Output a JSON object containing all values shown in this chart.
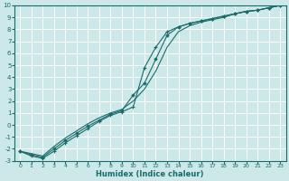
{
  "xlabel": "Humidex (Indice chaleur)",
  "ylabel": "",
  "bg_color": "#cce8e8",
  "grid_color": "#ffffff",
  "line_color": "#1a6b6b",
  "xlim": [
    -0.5,
    23.5
  ],
  "ylim": [
    -3,
    10
  ],
  "xticks": [
    0,
    1,
    2,
    3,
    4,
    5,
    6,
    7,
    8,
    9,
    10,
    11,
    12,
    13,
    14,
    15,
    16,
    17,
    18,
    19,
    20,
    21,
    22,
    23
  ],
  "yticks": [
    -3,
    -2,
    -1,
    0,
    1,
    2,
    3,
    4,
    5,
    6,
    7,
    8,
    9,
    10
  ],
  "series": [
    {
      "x": [
        0,
        1,
        2,
        3,
        4,
        5,
        6,
        7,
        8,
        9,
        10,
        11,
        12,
        13,
        14,
        15,
        16,
        17,
        18,
        19,
        20,
        21,
        22,
        23
      ],
      "y": [
        -2.2,
        -2.6,
        -2.8,
        -2.2,
        -1.5,
        -0.9,
        -0.3,
        0.3,
        0.8,
        1.1,
        1.5,
        4.8,
        6.5,
        7.8,
        8.2,
        8.5,
        8.7,
        8.9,
        9.1,
        9.3,
        9.5,
        9.6,
        9.8,
        10.0
      ],
      "marker": "+"
    },
    {
      "x": [
        0,
        1,
        2,
        3,
        4,
        5,
        6,
        7,
        8,
        9,
        10,
        11,
        12,
        13,
        14,
        15,
        16,
        17,
        18,
        19,
        20,
        21,
        22,
        23
      ],
      "y": [
        -2.2,
        -2.5,
        -2.7,
        -2.0,
        -1.3,
        -0.7,
        -0.1,
        0.4,
        0.9,
        1.2,
        2.5,
        3.5,
        5.5,
        7.5,
        8.2,
        8.5,
        8.7,
        8.9,
        9.1,
        9.3,
        9.5,
        9.6,
        9.8,
        10.0
      ],
      "marker": "D"
    },
    {
      "x": [
        0,
        1,
        2,
        3,
        4,
        5,
        6,
        7,
        8,
        9,
        10,
        11,
        12,
        13,
        14,
        15,
        16,
        17,
        18,
        19,
        20,
        21,
        22,
        23
      ],
      "y": [
        -2.2,
        -2.4,
        -2.6,
        -1.8,
        -1.1,
        -0.5,
        0.1,
        0.6,
        1.0,
        1.3,
        2.0,
        3.0,
        4.5,
        6.5,
        7.8,
        8.3,
        8.6,
        8.8,
        9.0,
        9.3,
        9.5,
        9.6,
        9.8,
        10.0
      ],
      "marker": null
    }
  ]
}
